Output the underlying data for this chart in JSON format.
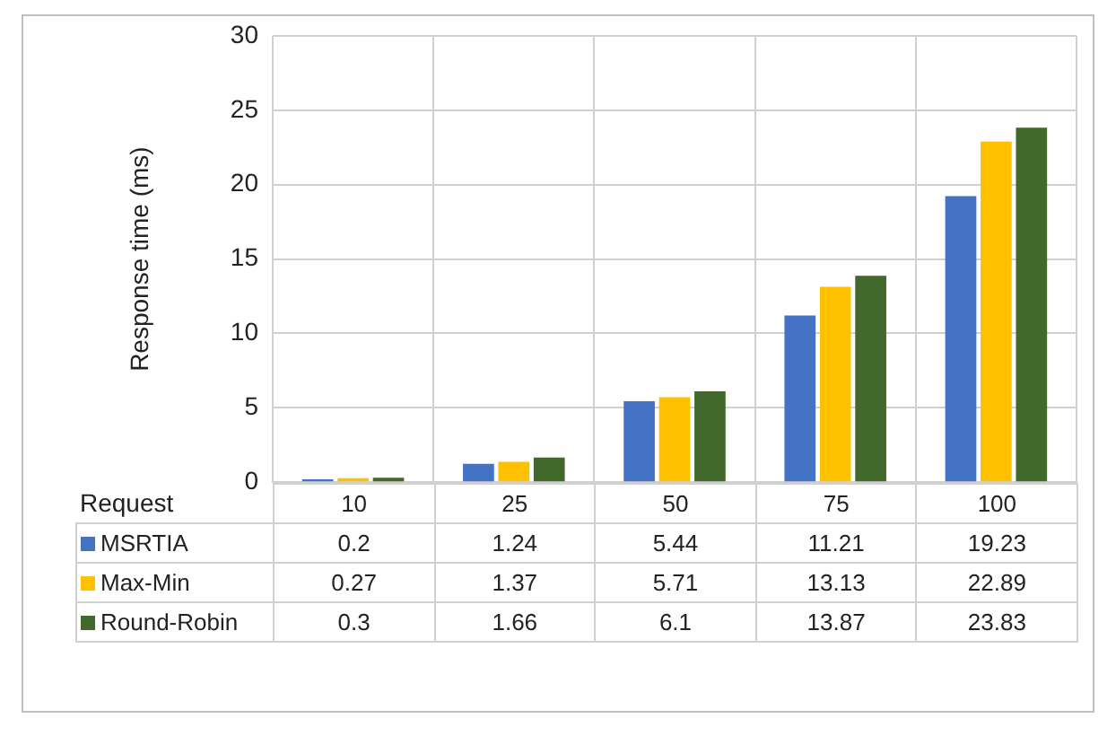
{
  "chart_data": {
    "type": "bar",
    "ylabel": "Response time (ms)",
    "xlabel": "Request",
    "categories": [
      "10",
      "25",
      "50",
      "75",
      "100"
    ],
    "series": [
      {
        "name": "MSRTIA",
        "color": "#4472c4",
        "values": [
          0.2,
          1.24,
          5.44,
          11.21,
          19.23
        ]
      },
      {
        "name": "Max-Min",
        "color": "#ffc000",
        "values": [
          0.27,
          1.37,
          5.71,
          13.13,
          22.89
        ]
      },
      {
        "name": "Round-Robin",
        "color": "#43682b",
        "values": [
          0.3,
          1.66,
          6.1,
          13.87,
          23.83
        ]
      }
    ],
    "ylim": [
      0,
      30
    ],
    "yticks": [
      0,
      5,
      10,
      15,
      20,
      25,
      30
    ],
    "grid": true,
    "legend": "bottom",
    "data_labels": true
  }
}
